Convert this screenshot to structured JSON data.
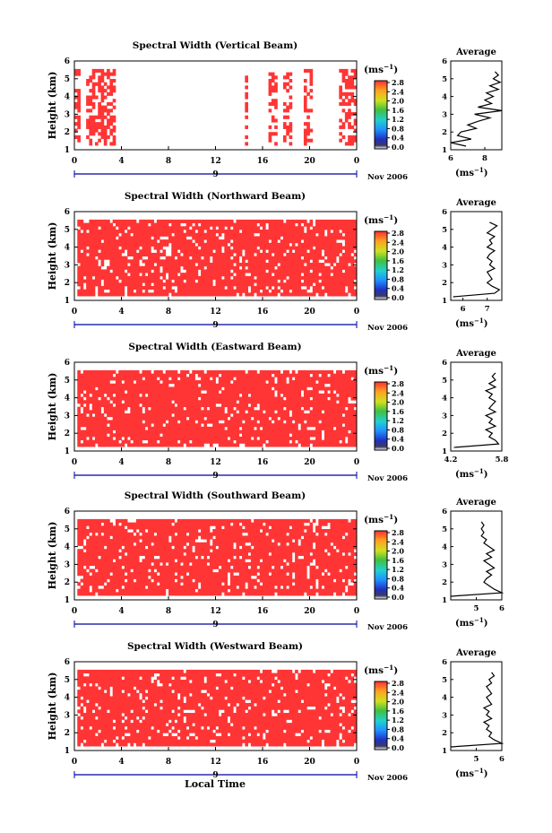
{
  "figure": {
    "time_label": "Local Time",
    "colorbar_unit": "(ms",
    "colorbar_unit_exp": "−1",
    "colorbar_unit_close": ")",
    "avg_title": "Average",
    "avg_unit": "(ms",
    "avg_unit_exp": "−1",
    "avg_unit_close": ")",
    "date_label": "Nov 2006",
    "day_label": "9",
    "colors": {
      "fill": "#ff3535",
      "outline": "#0000a0",
      "frame": "#000000"
    }
  },
  "chart_data": [
    {
      "type": "heatmap",
      "title": "Spectral Width (Vertical Beam)",
      "ylabel": "Height (km)",
      "xlabel": "Local Time",
      "xticks": [
        "0",
        "4",
        "8",
        "12",
        "16",
        "20",
        "0"
      ],
      "yticks": [
        "1",
        "2",
        "3",
        "4",
        "5",
        "6"
      ],
      "xlim": [
        0,
        24
      ],
      "ylim": [
        1,
        6
      ],
      "colorbar": {
        "min": 0.0,
        "max": 2.8,
        "ticks": [
          "2.8",
          "2.4",
          "2.0",
          "1.6",
          "1.2",
          "0.8",
          "0.4",
          "0.0"
        ]
      },
      "dominant_value": 2.8,
      "coverage": "sparse",
      "data_spans": [
        [
          0.0,
          0.4
        ],
        [
          1.0,
          3.6
        ],
        [
          14.4,
          14.8
        ],
        [
          16.4,
          17.3
        ],
        [
          17.8,
          18.5
        ],
        [
          19.5,
          20.2
        ],
        [
          22.5,
          23.9
        ]
      ],
      "average_profile": {
        "xlim": [
          6,
          9
        ],
        "xticks": [
          "6",
          "8"
        ],
        "height": [
          1.2,
          1.4,
          1.6,
          1.8,
          2.0,
          2.2,
          2.4,
          2.6,
          2.8,
          3.0,
          3.2,
          3.4,
          3.6,
          3.8,
          4.0,
          4.2,
          4.4,
          4.6,
          4.8,
          5.0,
          5.2,
          5.4
        ],
        "value": [
          6.9,
          6.0,
          7.2,
          6.4,
          6.6,
          7.5,
          7.0,
          7.6,
          8.3,
          7.4,
          9.0,
          7.6,
          8.4,
          8.0,
          8.5,
          8.1,
          8.8,
          8.3,
          8.9,
          8.5,
          8.8,
          8.6
        ]
      }
    },
    {
      "type": "heatmap",
      "title": "Spectral Width (Northward Beam)",
      "ylabel": "Height (km)",
      "xlabel": "Local Time",
      "xticks": [
        "0",
        "4",
        "8",
        "12",
        "16",
        "20",
        "0"
      ],
      "yticks": [
        "1",
        "2",
        "3",
        "4",
        "5",
        "6"
      ],
      "xlim": [
        0,
        24
      ],
      "ylim": [
        1,
        6
      ],
      "colorbar": {
        "min": 0.0,
        "max": 2.8,
        "ticks": [
          "2.8",
          "2.4",
          "2.0",
          "1.6",
          "1.2",
          "0.8",
          "0.4",
          "0.0"
        ]
      },
      "dominant_value": 2.8,
      "coverage": "dense",
      "data_spans": [
        [
          0.2,
          24.0
        ]
      ],
      "average_profile": {
        "xlim": [
          5.5,
          7.6
        ],
        "xticks": [
          "6",
          "7"
        ],
        "height": [
          1.2,
          1.4,
          1.6,
          1.8,
          2.0,
          2.2,
          2.4,
          2.6,
          2.8,
          3.0,
          3.2,
          3.4,
          3.6,
          3.8,
          4.0,
          4.2,
          4.4,
          4.6,
          4.8,
          5.0,
          5.2,
          5.4
        ],
        "value": [
          5.6,
          7.3,
          7.5,
          7.2,
          7.0,
          7.2,
          7.1,
          7.0,
          7.3,
          7.1,
          7.2,
          7.0,
          7.1,
          7.3,
          7.0,
          7.2,
          7.1,
          7.3,
          7.0,
          7.2,
          7.4,
          7.1
        ]
      }
    },
    {
      "type": "heatmap",
      "title": "Spectral Width (Eastward Beam)",
      "ylabel": "Height (km)",
      "xlabel": "Local Time",
      "xticks": [
        "0",
        "4",
        "8",
        "12",
        "16",
        "20",
        "0"
      ],
      "yticks": [
        "1",
        "2",
        "3",
        "4",
        "5",
        "6"
      ],
      "xlim": [
        0,
        24
      ],
      "ylim": [
        1,
        6
      ],
      "colorbar": {
        "min": 0.0,
        "max": 2.8,
        "ticks": [
          "2.8",
          "2.4",
          "2.0",
          "1.6",
          "1.2",
          "0.8",
          "0.4",
          "0.0"
        ]
      },
      "dominant_value": 2.8,
      "coverage": "dense",
      "data_spans": [
        [
          0.2,
          24.0
        ]
      ],
      "average_profile": {
        "xlim": [
          4.2,
          5.8
        ],
        "xticks": [
          "4.2",
          "5.8"
        ],
        "height": [
          1.2,
          1.4,
          1.6,
          1.8,
          2.0,
          2.2,
          2.4,
          2.6,
          2.8,
          3.0,
          3.2,
          3.4,
          3.6,
          3.8,
          4.0,
          4.2,
          4.4,
          4.6,
          4.8,
          5.0,
          5.2,
          5.4
        ],
        "value": [
          4.3,
          5.7,
          5.6,
          5.4,
          5.5,
          5.3,
          5.6,
          5.4,
          5.5,
          5.3,
          5.6,
          5.4,
          5.5,
          5.6,
          5.4,
          5.5,
          5.3,
          5.6,
          5.4,
          5.6,
          5.5,
          5.6
        ]
      }
    },
    {
      "type": "heatmap",
      "title": "Spectral Width (Southward Beam)",
      "ylabel": "Height (km)",
      "xlabel": "Local Time",
      "xticks": [
        "0",
        "4",
        "8",
        "12",
        "16",
        "20",
        "0"
      ],
      "yticks": [
        "1",
        "2",
        "3",
        "4",
        "5",
        "6"
      ],
      "xlim": [
        0,
        24
      ],
      "ylim": [
        1,
        6
      ],
      "colorbar": {
        "min": 0.0,
        "max": 2.8,
        "ticks": [
          "2.8",
          "2.4",
          "2.0",
          "1.6",
          "1.2",
          "0.8",
          "0.4",
          "0.0"
        ]
      },
      "dominant_value": 2.8,
      "coverage": "dense",
      "data_spans": [
        [
          0.2,
          24.0
        ]
      ],
      "average_profile": {
        "xlim": [
          4,
          6
        ],
        "xticks": [
          "5",
          "6"
        ],
        "height": [
          1.2,
          1.4,
          1.6,
          1.8,
          2.0,
          2.2,
          2.4,
          2.6,
          2.8,
          3.0,
          3.2,
          3.4,
          3.6,
          3.8,
          4.0,
          4.2,
          4.4,
          4.6,
          4.8,
          5.0,
          5.2,
          5.4
        ],
        "value": [
          4.0,
          6.0,
          5.7,
          5.5,
          5.3,
          5.4,
          5.6,
          5.4,
          5.7,
          5.5,
          5.3,
          5.6,
          5.4,
          5.7,
          5.5,
          5.3,
          5.4,
          5.2,
          5.3,
          5.2,
          5.3,
          5.2
        ]
      }
    },
    {
      "type": "heatmap",
      "title": "Spectral Width (Westward Beam)",
      "ylabel": "Height (km)",
      "xlabel": "Local Time",
      "xticks": [
        "0",
        "4",
        "8",
        "12",
        "16",
        "20",
        "0"
      ],
      "yticks": [
        "1",
        "2",
        "3",
        "4",
        "5",
        "6"
      ],
      "xlim": [
        0,
        24
      ],
      "ylim": [
        1,
        6
      ],
      "colorbar": {
        "min": 0.0,
        "max": 2.8,
        "ticks": [
          "2.8",
          "2.4",
          "2.0",
          "1.6",
          "1.2",
          "0.8",
          "0.4",
          "0.0"
        ]
      },
      "dominant_value": 2.8,
      "coverage": "dense",
      "data_spans": [
        [
          0.2,
          24.0
        ]
      ],
      "average_profile": {
        "xlim": [
          4,
          6
        ],
        "xticks": [
          "5",
          "6"
        ],
        "height": [
          1.2,
          1.4,
          1.6,
          1.8,
          2.0,
          2.2,
          2.4,
          2.6,
          2.8,
          3.0,
          3.2,
          3.4,
          3.6,
          3.8,
          4.0,
          4.2,
          4.4,
          4.6,
          4.8,
          5.0,
          5.2,
          5.4
        ],
        "value": [
          4.0,
          6.0,
          5.7,
          5.5,
          5.6,
          5.4,
          5.5,
          5.3,
          5.6,
          5.4,
          5.5,
          5.3,
          5.6,
          5.5,
          5.4,
          5.6,
          5.5,
          5.4,
          5.6,
          5.5,
          5.7,
          5.6
        ]
      }
    }
  ]
}
